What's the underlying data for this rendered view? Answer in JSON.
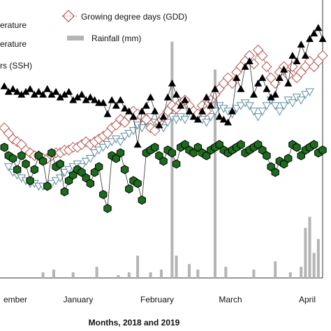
{
  "chart_data": {
    "type": "line",
    "title": "",
    "xlabel": "Months, 2018 and 2019",
    "ylabel": "",
    "categories": [
      "ember",
      "January",
      "February",
      "March",
      "April"
    ],
    "legend": [
      {
        "text": "erature",
        "marker": "none"
      },
      {
        "text": "erature",
        "marker": "none"
      },
      {
        "text": "rs (SSH)",
        "marker": "none"
      },
      {
        "text": "Growing degree days (GDD)",
        "marker": "diamond"
      },
      {
        "text": "Rainfall (mm)",
        "marker": "bar"
      }
    ],
    "ylim": [
      0,
      100
    ],
    "xlim": [
      0,
      150
    ],
    "colors": {
      "max_temp": "#000000",
      "gdd": "#b5544e",
      "min_temp": "#5f8ea0",
      "ssh": "#1d6b1d",
      "rainfall": "#b4b4b4",
      "line": "#333333"
    },
    "series": [
      {
        "key": "max_temp",
        "marker": "triangle-up",
        "values": [
          [
            2,
            69
          ],
          [
            4,
            67
          ],
          [
            6,
            68
          ],
          [
            8,
            67
          ],
          [
            10,
            66
          ],
          [
            12,
            67
          ],
          [
            14,
            68
          ],
          [
            16,
            66
          ],
          [
            18,
            67
          ],
          [
            20,
            66
          ],
          [
            22,
            68
          ],
          [
            24,
            66
          ],
          [
            26,
            67
          ],
          [
            28,
            65
          ],
          [
            30,
            66
          ],
          [
            32,
            67
          ],
          [
            34,
            64
          ],
          [
            36,
            65
          ],
          [
            38,
            66
          ],
          [
            40,
            64
          ],
          [
            42,
            65
          ],
          [
            44,
            64
          ],
          [
            46,
            63
          ],
          [
            48,
            63
          ],
          [
            50,
            59
          ],
          [
            52,
            64
          ],
          [
            54,
            62
          ],
          [
            56,
            64
          ],
          [
            58,
            61
          ],
          [
            60,
            60
          ],
          [
            62,
            58
          ],
          [
            64,
            48
          ],
          [
            66,
            60
          ],
          [
            68,
            62
          ],
          [
            70,
            65
          ],
          [
            72,
            60
          ],
          [
            74,
            55
          ],
          [
            76,
            58
          ],
          [
            78,
            65
          ],
          [
            80,
            70
          ],
          [
            82,
            66
          ],
          [
            84,
            62
          ],
          [
            86,
            64
          ],
          [
            88,
            60
          ],
          [
            90,
            58
          ],
          [
            92,
            57
          ],
          [
            94,
            60
          ],
          [
            96,
            65
          ],
          [
            98,
            62
          ],
          [
            100,
            68
          ],
          [
            102,
            58
          ],
          [
            104,
            57
          ],
          [
            106,
            56
          ],
          [
            108,
            60
          ],
          [
            110,
            72
          ],
          [
            112,
            68
          ],
          [
            114,
            76
          ],
          [
            116,
            78
          ],
          [
            118,
            66
          ],
          [
            120,
            70
          ],
          [
            122,
            72
          ],
          [
            124,
            68
          ],
          [
            126,
            65
          ],
          [
            128,
            66
          ],
          [
            130,
            72
          ],
          [
            132,
            75
          ],
          [
            134,
            70
          ],
          [
            136,
            80
          ],
          [
            138,
            78
          ],
          [
            140,
            84
          ],
          [
            142,
            80
          ],
          [
            144,
            86
          ],
          [
            146,
            88
          ],
          [
            148,
            90
          ],
          [
            150,
            86
          ]
        ]
      },
      {
        "key": "gdd",
        "marker": "diamond",
        "values": [
          [
            2,
            54
          ],
          [
            4,
            52
          ],
          [
            6,
            50
          ],
          [
            8,
            49
          ],
          [
            10,
            48
          ],
          [
            12,
            46
          ],
          [
            14,
            45
          ],
          [
            16,
            44
          ],
          [
            18,
            44
          ],
          [
            20,
            43
          ],
          [
            22,
            43
          ],
          [
            24,
            44
          ],
          [
            26,
            45
          ],
          [
            28,
            45
          ],
          [
            30,
            46
          ],
          [
            32,
            46
          ],
          [
            34,
            47
          ],
          [
            36,
            47
          ],
          [
            38,
            48
          ],
          [
            40,
            49
          ],
          [
            42,
            48
          ],
          [
            44,
            49
          ],
          [
            46,
            50
          ],
          [
            48,
            51
          ],
          [
            50,
            52
          ],
          [
            52,
            54
          ],
          [
            54,
            55
          ],
          [
            56,
            57
          ],
          [
            58,
            56
          ],
          [
            60,
            58
          ],
          [
            62,
            60
          ],
          [
            64,
            59
          ],
          [
            66,
            58
          ],
          [
            68,
            57
          ],
          [
            70,
            54
          ],
          [
            72,
            53
          ],
          [
            74,
            56
          ],
          [
            76,
            58
          ],
          [
            78,
            60
          ],
          [
            80,
            62
          ],
          [
            82,
            61
          ],
          [
            84,
            63
          ],
          [
            86,
            64
          ],
          [
            88,
            62
          ],
          [
            90,
            60
          ],
          [
            92,
            59
          ],
          [
            94,
            62
          ],
          [
            96,
            60
          ],
          [
            98,
            64
          ],
          [
            100,
            66
          ],
          [
            102,
            68
          ],
          [
            104,
            70
          ],
          [
            106,
            72
          ],
          [
            108,
            70
          ],
          [
            110,
            74
          ],
          [
            112,
            76
          ],
          [
            114,
            78
          ],
          [
            116,
            80
          ],
          [
            118,
            77
          ],
          [
            120,
            82
          ],
          [
            122,
            80
          ],
          [
            124,
            76
          ],
          [
            126,
            72
          ],
          [
            128,
            70
          ],
          [
            130,
            74
          ],
          [
            132,
            76
          ],
          [
            134,
            73
          ],
          [
            136,
            76
          ],
          [
            138,
            72
          ],
          [
            140,
            74
          ],
          [
            142,
            76
          ],
          [
            144,
            78
          ],
          [
            146,
            76
          ],
          [
            148,
            78
          ],
          [
            150,
            80
          ]
        ]
      },
      {
        "key": "min_temp",
        "marker": "triangle-down",
        "values": [
          [
            4,
            40
          ],
          [
            6,
            38
          ],
          [
            8,
            37
          ],
          [
            10,
            36
          ],
          [
            12,
            35
          ],
          [
            14,
            34
          ],
          [
            16,
            34
          ],
          [
            18,
            33
          ],
          [
            20,
            33
          ],
          [
            22,
            33
          ],
          [
            24,
            34
          ],
          [
            26,
            35
          ],
          [
            28,
            36
          ],
          [
            30,
            38
          ],
          [
            32,
            39
          ],
          [
            34,
            40
          ],
          [
            36,
            41
          ],
          [
            38,
            40
          ],
          [
            40,
            42
          ],
          [
            42,
            43
          ],
          [
            44,
            45
          ],
          [
            46,
            46
          ],
          [
            48,
            47
          ],
          [
            50,
            48
          ],
          [
            52,
            49
          ],
          [
            54,
            50
          ],
          [
            56,
            49
          ],
          [
            58,
            51
          ],
          [
            60,
            52
          ],
          [
            62,
            53
          ],
          [
            64,
            55
          ],
          [
            66,
            54
          ],
          [
            68,
            56
          ],
          [
            70,
            58
          ],
          [
            72,
            56
          ],
          [
            74,
            55
          ],
          [
            76,
            54
          ],
          [
            78,
            56
          ],
          [
            80,
            58
          ],
          [
            82,
            57
          ],
          [
            84,
            58
          ],
          [
            86,
            57
          ],
          [
            88,
            60
          ],
          [
            90,
            59
          ],
          [
            92,
            58
          ],
          [
            94,
            57
          ],
          [
            96,
            56
          ],
          [
            98,
            58
          ],
          [
            100,
            60
          ],
          [
            102,
            62
          ],
          [
            104,
            61
          ],
          [
            106,
            60
          ],
          [
            108,
            59
          ],
          [
            110,
            61
          ],
          [
            112,
            62
          ],
          [
            114,
            63
          ],
          [
            116,
            62
          ],
          [
            118,
            60
          ],
          [
            120,
            58
          ],
          [
            122,
            60
          ],
          [
            124,
            62
          ],
          [
            126,
            64
          ],
          [
            128,
            62
          ],
          [
            130,
            60
          ],
          [
            132,
            62
          ],
          [
            134,
            64
          ],
          [
            136,
            63
          ],
          [
            138,
            65
          ],
          [
            140,
            64
          ],
          [
            142,
            66
          ],
          [
            144,
            67
          ]
        ]
      },
      {
        "key": "ssh",
        "marker": "hexagon",
        "values": [
          [
            2,
            47
          ],
          [
            4,
            44
          ],
          [
            6,
            43
          ],
          [
            8,
            39
          ],
          [
            10,
            44
          ],
          [
            12,
            41
          ],
          [
            14,
            35
          ],
          [
            16,
            39
          ],
          [
            18,
            44
          ],
          [
            20,
            42
          ],
          [
            22,
            33
          ],
          [
            24,
            45
          ],
          [
            26,
            40
          ],
          [
            28,
            41
          ],
          [
            30,
            31
          ],
          [
            32,
            35
          ],
          [
            34,
            37
          ],
          [
            36,
            39
          ],
          [
            38,
            38
          ],
          [
            40,
            36
          ],
          [
            42,
            34
          ],
          [
            44,
            38
          ],
          [
            46,
            40
          ],
          [
            48,
            30
          ],
          [
            50,
            25
          ],
          [
            52,
            44
          ],
          [
            54,
            43
          ],
          [
            56,
            45
          ],
          [
            58,
            39
          ],
          [
            60,
            32
          ],
          [
            62,
            35
          ],
          [
            64,
            34
          ],
          [
            66,
            28
          ],
          [
            68,
            45
          ],
          [
            70,
            46
          ],
          [
            72,
            47
          ],
          [
            74,
            44
          ],
          [
            76,
            42
          ],
          [
            78,
            46
          ],
          [
            80,
            45
          ],
          [
            82,
            41
          ],
          [
            84,
            47
          ],
          [
            86,
            48
          ],
          [
            88,
            46
          ],
          [
            90,
            45
          ],
          [
            92,
            47
          ],
          [
            94,
            45
          ],
          [
            96,
            44
          ],
          [
            98,
            46
          ],
          [
            100,
            47
          ],
          [
            102,
            48
          ],
          [
            104,
            46
          ],
          [
            106,
            45
          ],
          [
            108,
            46
          ],
          [
            110,
            47
          ],
          [
            112,
            48
          ],
          [
            114,
            45
          ],
          [
            116,
            46
          ],
          [
            118,
            47
          ],
          [
            120,
            48
          ],
          [
            122,
            46
          ],
          [
            124,
            44
          ],
          [
            126,
            40
          ],
          [
            128,
            38
          ],
          [
            130,
            42
          ],
          [
            132,
            41
          ],
          [
            134,
            43
          ],
          [
            136,
            48
          ],
          [
            138,
            47
          ],
          [
            140,
            44
          ],
          [
            142,
            46
          ],
          [
            144,
            47
          ],
          [
            146,
            48
          ],
          [
            148,
            45
          ],
          [
            150,
            46
          ]
        ]
      }
    ],
    "rainfall": [
      [
        20,
        2
      ],
      [
        25,
        3
      ],
      [
        34,
        2
      ],
      [
        45,
        4
      ],
      [
        55,
        1
      ],
      [
        60,
        2
      ],
      [
        64,
        8
      ],
      [
        70,
        2
      ],
      [
        75,
        3
      ],
      [
        80,
        85
      ],
      [
        82,
        8
      ],
      [
        88,
        5
      ],
      [
        92,
        3
      ],
      [
        100,
        75
      ],
      [
        105,
        4
      ],
      [
        118,
        3
      ],
      [
        128,
        6
      ],
      [
        135,
        2
      ],
      [
        140,
        4
      ],
      [
        142,
        18
      ],
      [
        144,
        22
      ],
      [
        146,
        9
      ],
      [
        148,
        14
      ]
    ]
  }
}
